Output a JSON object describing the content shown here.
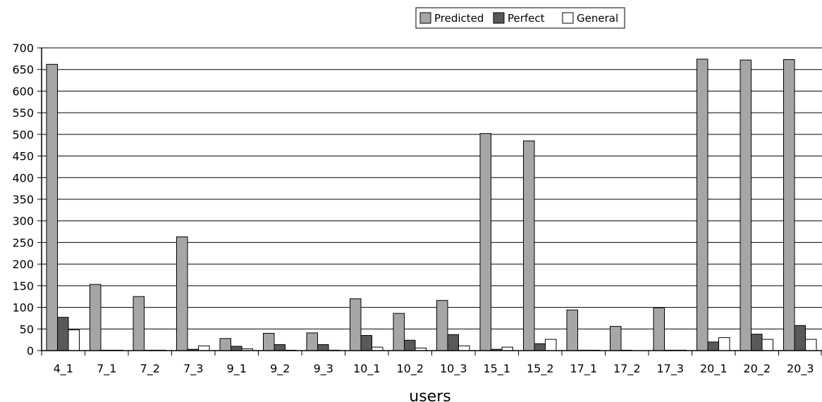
{
  "chart_data": {
    "type": "bar",
    "title": "",
    "xlabel": "users",
    "ylabel": "",
    "ylim": [
      0,
      700
    ],
    "yticks": [
      0,
      50,
      100,
      150,
      200,
      250,
      300,
      350,
      400,
      450,
      500,
      550,
      600,
      650,
      700
    ],
    "grid": true,
    "legend_position": "top-right",
    "categories": [
      "4_1",
      "7_1",
      "7_2",
      "7_3",
      "9_1",
      "9_2",
      "9_3",
      "10_1",
      "10_2",
      "10_3",
      "15_1",
      "15_2",
      "17_1",
      "17_2",
      "17_3",
      "20_1",
      "20_2",
      "20_3"
    ],
    "series": [
      {
        "name": "Predicted",
        "color": "#a6a6a6",
        "values": [
          662,
          153,
          125,
          263,
          28,
          40,
          41,
          120,
          86,
          116,
          502,
          485,
          94,
          56,
          99,
          674,
          672,
          673
        ]
      },
      {
        "name": "Perfect",
        "color": "#595959",
        "values": [
          77,
          1,
          1,
          3,
          10,
          14,
          14,
          35,
          24,
          37,
          3,
          16,
          1,
          1,
          1,
          20,
          38,
          58
        ]
      },
      {
        "name": "General",
        "color": "#ffffff",
        "values": [
          48,
          1,
          1,
          11,
          4,
          1,
          1,
          8,
          6,
          11,
          8,
          26,
          1,
          0,
          1,
          30,
          26,
          26
        ]
      }
    ]
  }
}
